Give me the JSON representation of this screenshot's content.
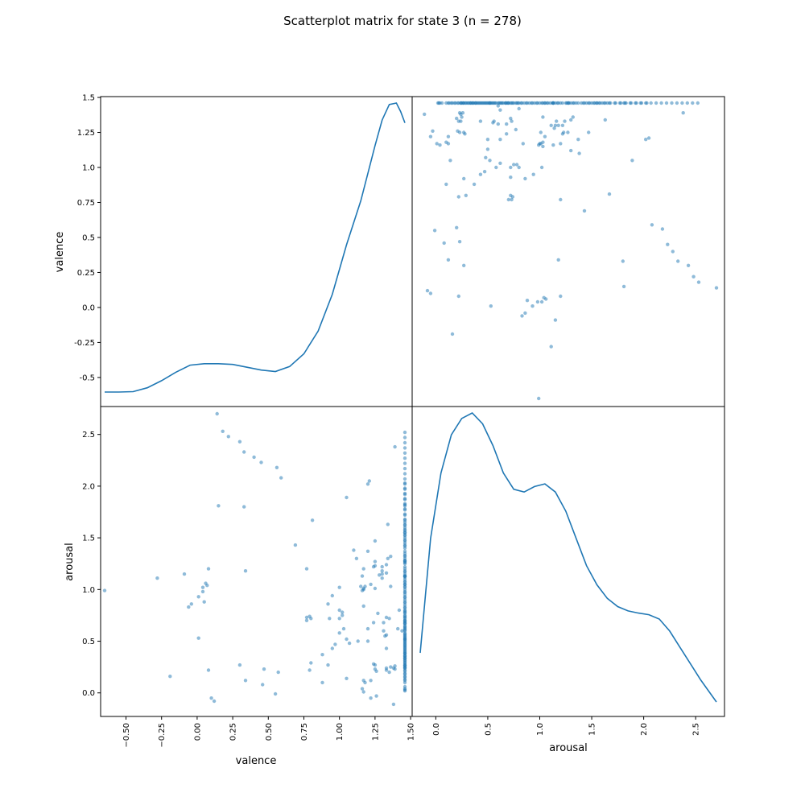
{
  "chart_data": {
    "type": "scatter",
    "title": "Scatterplot matrix for state 3 (n = 278)",
    "variables": [
      "valence",
      "arousal"
    ],
    "ranges": {
      "valence": [
        -0.65,
        1.46
      ],
      "arousal": [
        -0.15,
        2.7
      ]
    },
    "axis_ticks": {
      "valence": [
        -0.5,
        -0.25,
        0.0,
        0.25,
        0.5,
        0.75,
        1.0,
        1.25,
        1.5
      ],
      "arousal": [
        0.0,
        0.5,
        1.0,
        1.5,
        2.0,
        2.5
      ]
    },
    "tick_labels": {
      "valence_left": [
        "-0.5",
        "-0.25",
        "0.0",
        "0.25",
        "0.5",
        "0.75",
        "1.0",
        "1.25",
        "1.5"
      ],
      "valence_bottom": [
        "−0.50",
        "−0.25",
        "0.00",
        "0.25",
        "0.50",
        "0.75",
        "1.00",
        "1.25",
        "1.50"
      ],
      "arousal_left": [
        "0.0",
        "0.5",
        "1.0",
        "1.5",
        "2.0",
        "2.5"
      ],
      "arousal_bottom": [
        "0.0",
        "0.5",
        "1.0",
        "1.5",
        "2.0",
        "2.5"
      ]
    },
    "axis_labels": {
      "valence_y": "valence",
      "arousal_y": "arousal",
      "valence_x": "valence",
      "arousal_x": "arousal"
    },
    "diagonal": "kde",
    "kde": {
      "valence": {
        "x": [
          -0.65,
          -0.55,
          -0.45,
          -0.35,
          -0.25,
          -0.15,
          -0.05,
          0.05,
          0.15,
          0.25,
          0.35,
          0.45,
          0.55,
          0.65,
          0.75,
          0.85,
          0.95,
          1.05,
          1.15,
          1.25,
          1.3,
          1.35,
          1.4,
          1.43,
          1.46
        ],
        "density": [
          0.05,
          0.05,
          0.053,
          0.08,
          0.13,
          0.19,
          0.24,
          0.25,
          0.25,
          0.245,
          0.225,
          0.205,
          0.195,
          0.23,
          0.32,
          0.48,
          0.74,
          1.09,
          1.4,
          1.79,
          1.97,
          2.08,
          2.09,
          2.03,
          1.95
        ]
      },
      "arousal": {
        "x": [
          -0.15,
          -0.05,
          0.05,
          0.15,
          0.25,
          0.35,
          0.45,
          0.55,
          0.65,
          0.75,
          0.85,
          0.95,
          1.05,
          1.15,
          1.25,
          1.35,
          1.45,
          1.55,
          1.65,
          1.75,
          1.85,
          1.95,
          2.05,
          2.15,
          2.25,
          2.35,
          2.45,
          2.55,
          2.7
        ],
        "density": [
          0.26,
          0.47,
          0.59,
          0.66,
          0.69,
          0.7,
          0.68,
          0.64,
          0.59,
          0.56,
          0.555,
          0.565,
          0.57,
          0.555,
          0.52,
          0.47,
          0.42,
          0.385,
          0.36,
          0.345,
          0.337,
          0.333,
          0.33,
          0.322,
          0.3,
          0.27,
          0.24,
          0.21,
          0.17
        ]
      }
    },
    "points": {
      "valence": [
        1.46,
        1.46,
        1.46,
        1.46,
        1.46,
        1.46,
        1.46,
        1.46,
        1.46,
        1.46,
        1.46,
        1.46,
        1.46,
        1.46,
        1.46,
        1.46,
        1.46,
        1.46,
        1.46,
        1.46,
        1.46,
        1.46,
        1.46,
        1.46,
        1.46,
        1.46,
        1.46,
        1.46,
        1.46,
        1.46,
        1.46,
        1.46,
        1.46,
        1.46,
        1.46,
        1.46,
        1.46,
        1.46,
        1.46,
        1.46,
        1.46,
        1.46,
        1.46,
        1.46,
        1.46,
        1.46,
        1.46,
        1.46,
        1.46,
        1.46,
        1.46,
        1.46,
        1.46,
        1.46,
        1.46,
        1.46,
        1.46,
        1.46,
        1.46,
        1.46,
        1.46,
        1.46,
        1.46,
        1.46,
        1.46,
        1.46,
        1.46,
        1.46,
        1.46,
        1.46,
        1.46,
        1.46,
        1.46,
        1.46,
        1.46,
        1.46,
        1.46,
        1.46,
        1.46,
        1.46,
        1.46,
        1.46,
        1.46,
        1.46,
        1.46,
        1.46,
        1.46,
        1.46,
        1.46,
        1.46,
        1.46,
        1.46,
        1.46,
        1.46,
        1.46,
        1.46,
        1.46,
        1.46,
        1.46,
        1.46,
        1.39,
        1.2,
        1.21,
        1.05,
        1.25,
        1.2,
        1.25,
        1.25,
        1.24,
        1.17,
        1.16,
        1.15,
        1.25,
        1.3,
        1.3,
        1.3,
        1.33,
        1.34,
        1.36,
        1.33,
        1.3,
        1.28,
        1.22,
        1.34,
        1.31,
        1.0,
        1.17,
        1.18,
        1.17,
        1.16,
        1.17,
        1.24,
        1.36,
        1.39,
        1.25,
        1.26,
        1.39,
        1.38,
        1.35,
        1.33,
        1.33,
        1.33,
        1.32,
        1.31,
        1.2,
        1.12,
        1.1,
        1.0,
        1.0,
        0.95,
        0.92,
        0.88,
        0.8,
        0.77,
        0.77,
        0.79,
        0.81,
        0.93,
        1.02,
        1.05,
        1.07,
        1.13,
        1.2,
        1.22,
        1.26,
        1.16,
        1.17,
        1.17,
        1.05,
        1.03,
        1.02,
        1.0,
        0.97,
        0.95,
        0.92,
        0.88,
        0.8,
        0.79,
        0.77,
        0.69,
        0.57,
        0.55,
        0.47,
        0.46,
        0.33,
        0.34,
        0.3,
        0.34,
        0.15,
        0.08,
        0.07,
        0.04,
        0.01,
        -0.04,
        -0.06,
        -0.09,
        -0.19,
        -0.28,
        -0.65,
        1.22,
        1.25,
        1.35,
        1.41,
        1.33,
        1.38,
        1.27,
        1.46,
        1.46,
        1.46,
        1.46,
        1.46,
        1.46,
        1.46,
        1.46,
        1.46,
        1.46,
        1.46,
        1.46,
        1.46,
        1.46,
        1.46,
        1.46,
        1.46,
        1.46,
        1.46,
        1.46,
        1.46,
        1.46,
        1.46,
        1.46,
        1.46,
        1.46,
        1.46,
        1.46,
        1.46,
        1.46,
        1.46,
        1.46,
        1.46,
        1.46,
        1.46,
        1.46,
        1.46,
        1.46,
        1.46,
        1.46,
        1.46,
        1.46,
        1.46,
        1.46,
        1.46,
        1.46,
        1.46,
        1.46,
        1.46,
        1.46,
        1.46,
        1.46,
        1.46,
        0.59,
        0.56,
        0.45,
        0.4,
        0.33,
        0.3,
        0.22,
        0.18,
        0.14,
        0.12,
        0.1,
        0.08,
        0.06,
        0.05,
        0.04,
        0.01,
        1.42,
        1.46,
        1.24,
        1.18,
        1.33,
        1.36,
        1.44
      ],
      "arousal": [
        0.1,
        0.15,
        0.22,
        0.24,
        0.27,
        0.29,
        0.31,
        0.34,
        0.36,
        0.38,
        0.41,
        0.43,
        0.45,
        0.48,
        0.5,
        0.52,
        0.55,
        0.57,
        0.6,
        0.62,
        0.67,
        0.69,
        0.72,
        0.75,
        0.77,
        0.82,
        0.87,
        0.92,
        0.97,
        1.02,
        1.07,
        1.12,
        1.17,
        1.22,
        1.27,
        1.32,
        1.37,
        1.42,
        1.47,
        1.52,
        1.57,
        1.62,
        1.67,
        1.72,
        1.77,
        1.82,
        1.87,
        1.92,
        1.97,
        2.02,
        2.07,
        2.12,
        2.17,
        2.22,
        2.27,
        2.32,
        2.37,
        2.42,
        2.47,
        2.52,
        0.03,
        0.06,
        0.12,
        0.18,
        0.19,
        0.21,
        0.24,
        0.26,
        0.33,
        0.35,
        0.39,
        0.44,
        0.46,
        0.51,
        0.53,
        0.58,
        0.63,
        0.65,
        0.68,
        0.7,
        0.73,
        0.78,
        0.8,
        0.85,
        0.9,
        0.95,
        1.0,
        1.05,
        1.1,
        1.15,
        1.2,
        1.25,
        1.3,
        1.35,
        1.4,
        1.45,
        1.5,
        1.55,
        1.6,
        1.65,
        2.38,
        2.02,
        2.05,
        1.89,
        1.47,
        1.37,
        1.27,
        1.23,
        1.22,
        1.2,
        1.13,
        1.03,
        1.01,
        1.11,
        1.18,
        1.22,
        1.24,
        1.3,
        1.32,
        1.16,
        1.15,
        1.14,
        1.05,
        1.63,
        0.68,
        1.02,
        1.0,
        1.03,
        1.01,
        0.99,
        0.84,
        0.28,
        0.25,
        0.23,
        0.23,
        0.21,
        0.26,
        0.24,
        0.2,
        0.22,
        0.24,
        0.56,
        0.55,
        0.6,
        0.62,
        1.3,
        1.38,
        0.72,
        0.8,
        0.94,
        0.86,
        0.1,
        0.72,
        0.7,
        0.73,
        0.74,
        1.67,
        0.72,
        0.78,
        0.52,
        0.48,
        0.5,
        0.5,
        -0.05,
        -0.03,
        0.04,
        0.01,
        0.12,
        0.14,
        0.62,
        0.75,
        0.58,
        0.47,
        0.43,
        0.27,
        0.37,
        0.29,
        0.22,
        1.2,
        1.43,
        0.2,
        -0.01,
        0.23,
        0.08,
        1.8,
        1.18,
        0.27,
        0.12,
        1.81,
        0.22,
        1.04,
        1.02,
        0.93,
        0.86,
        0.83,
        1.15,
        0.16,
        1.11,
        0.99,
        0.12,
        0.27,
        0.72,
        0.62,
        0.43,
        -0.11,
        0.77,
        1.81,
        0.38,
        0.04,
        0.42,
        1.05,
        1.55,
        1.13,
        0.67,
        0.52,
        0.49,
        0.31,
        0.27,
        1.28,
        0.02,
        0.13,
        0.16,
        0.25,
        0.29,
        0.33,
        0.36,
        0.4,
        0.47,
        0.54,
        0.56,
        0.61,
        0.64,
        0.7,
        0.74,
        0.79,
        0.83,
        0.88,
        0.93,
        0.98,
        1.03,
        1.08,
        1.13,
        1.18,
        1.26,
        1.28,
        1.33,
        1.43,
        1.48,
        1.53,
        1.58,
        1.63,
        1.68,
        1.73,
        1.78,
        1.83,
        1.88,
        1.93,
        1.98,
        2.03,
        2.08,
        2.18,
        2.23,
        2.28,
        2.33,
        2.43,
        2.48,
        2.53,
        2.7,
        -0.08,
        -0.05,
        1.2,
        1.06,
        0.88,
        0.98,
        0.53,
        0.8,
        1.13,
        0.68,
        0.1,
        0.73,
        1.03,
        0.6,
        1.8,
        0.18,
        0.18,
        1.07,
        0.12,
        -0.07,
        0.05,
        1.14,
        1.25
      ]
    }
  }
}
